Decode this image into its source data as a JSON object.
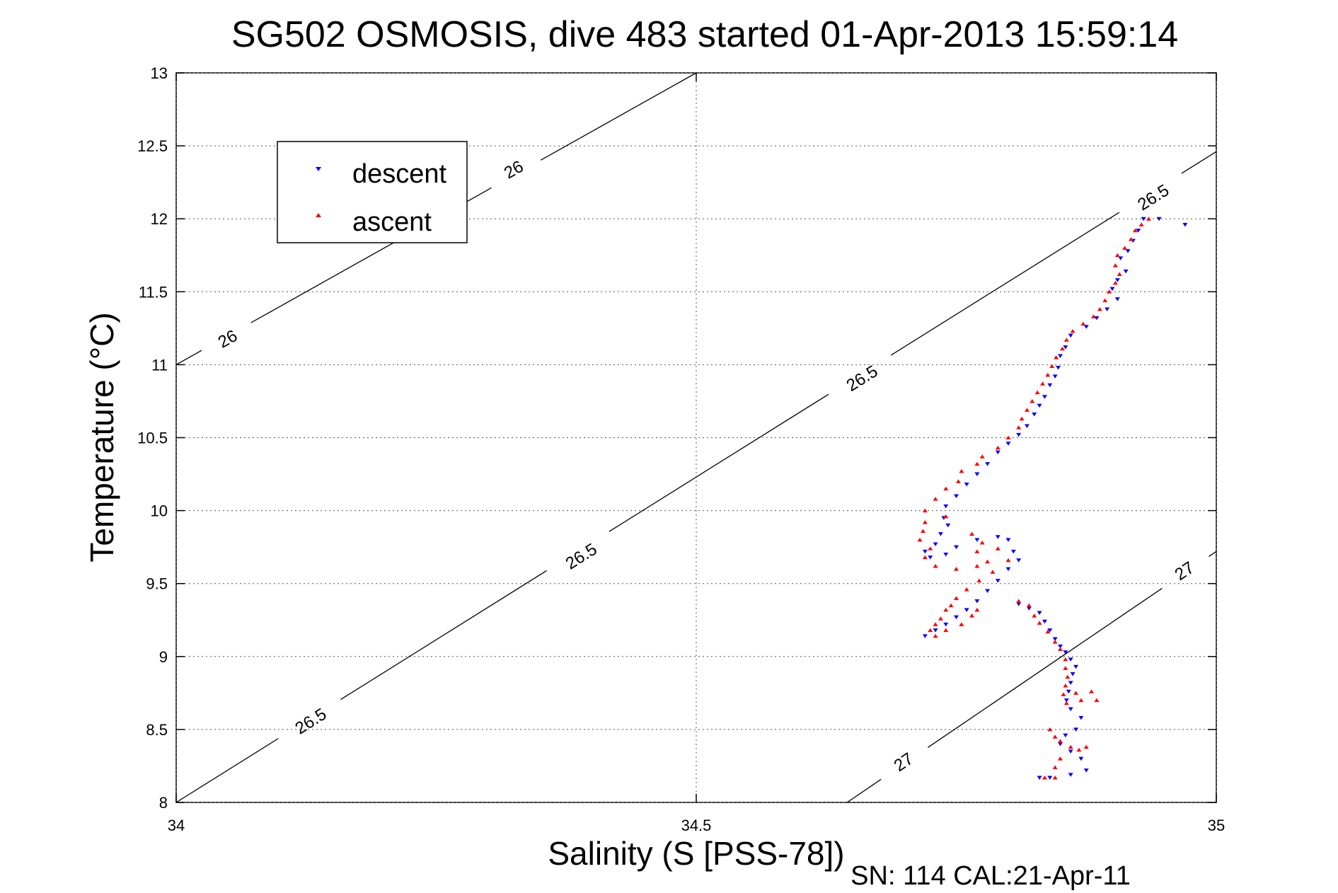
{
  "chart_data": {
    "type": "scatter",
    "title": "SG502 OSMOSIS, dive 483 started 01-Apr-2013 15:59:14",
    "xlabel": "Salinity (S [PSS-78])",
    "ylabel": "Temperature (°C)",
    "footer": "SN: 114  CAL:21-Apr-11",
    "xlim": [
      34,
      35
    ],
    "ylim": [
      8,
      13
    ],
    "x_ticks": [
      "34",
      "34.5",
      "35"
    ],
    "y_ticks": [
      "8",
      "8.5",
      "9",
      "9.5",
      "10",
      "10.5",
      "11",
      "11.5",
      "12",
      "12.5",
      "13"
    ],
    "grid": true,
    "legend_position": "top-left",
    "series": [
      {
        "name": "descent",
        "color": "#0000ff",
        "marker": "triangle-down",
        "points": [
          [
            34.93,
            12.0
          ],
          [
            34.945,
            12.0
          ],
          [
            34.97,
            11.96
          ],
          [
            34.925,
            11.92
          ],
          [
            34.92,
            11.85
          ],
          [
            34.915,
            11.78
          ],
          [
            34.908,
            11.73
          ],
          [
            34.913,
            11.64
          ],
          [
            34.905,
            11.58
          ],
          [
            34.9,
            11.52
          ],
          [
            34.905,
            11.45
          ],
          [
            34.895,
            11.38
          ],
          [
            34.885,
            11.32
          ],
          [
            34.875,
            11.26
          ],
          [
            34.86,
            11.2
          ],
          [
            34.855,
            11.12
          ],
          [
            34.85,
            11.06
          ],
          [
            34.848,
            10.98
          ],
          [
            34.845,
            10.92
          ],
          [
            34.84,
            10.86
          ],
          [
            34.835,
            10.78
          ],
          [
            34.83,
            10.72
          ],
          [
            34.825,
            10.66
          ],
          [
            34.818,
            10.58
          ],
          [
            34.81,
            10.52
          ],
          [
            34.8,
            10.46
          ],
          [
            34.79,
            10.4
          ],
          [
            34.78,
            10.32
          ],
          [
            34.77,
            10.25
          ],
          [
            34.76,
            10.18
          ],
          [
            34.75,
            10.1
          ],
          [
            34.74,
            10.03
          ],
          [
            34.738,
            9.95
          ],
          [
            34.742,
            9.9
          ],
          [
            34.735,
            9.84
          ],
          [
            34.73,
            9.77
          ],
          [
            34.72,
            9.72
          ],
          [
            34.725,
            9.68
          ],
          [
            34.74,
            9.7
          ],
          [
            34.75,
            9.75
          ],
          [
            34.77,
            9.8
          ],
          [
            34.79,
            9.82
          ],
          [
            34.8,
            9.8
          ],
          [
            34.805,
            9.72
          ],
          [
            34.81,
            9.66
          ],
          [
            34.8,
            9.6
          ],
          [
            34.79,
            9.52
          ],
          [
            34.78,
            9.45
          ],
          [
            34.77,
            9.38
          ],
          [
            34.76,
            9.32
          ],
          [
            34.75,
            9.27
          ],
          [
            34.74,
            9.22
          ],
          [
            34.73,
            9.18
          ],
          [
            34.72,
            9.14
          ],
          [
            34.81,
            9.36
          ],
          [
            34.82,
            9.33
          ],
          [
            34.83,
            9.3
          ],
          [
            34.835,
            9.24
          ],
          [
            34.84,
            9.18
          ],
          [
            34.845,
            9.12
          ],
          [
            34.85,
            9.07
          ],
          [
            34.855,
            9.03
          ],
          [
            34.86,
            8.98
          ],
          [
            34.865,
            8.93
          ],
          [
            34.862,
            8.88
          ],
          [
            34.86,
            8.82
          ],
          [
            34.858,
            8.76
          ],
          [
            34.856,
            8.7
          ],
          [
            34.86,
            8.64
          ],
          [
            34.87,
            8.58
          ],
          [
            34.865,
            8.5
          ],
          [
            34.855,
            8.46
          ],
          [
            34.85,
            8.4
          ],
          [
            34.86,
            8.35
          ],
          [
            34.87,
            8.3
          ],
          [
            34.875,
            8.22
          ],
          [
            34.86,
            8.19
          ],
          [
            34.83,
            8.17
          ],
          [
            34.84,
            8.17
          ]
        ]
      },
      {
        "name": "ascent",
        "color": "#ff0000",
        "marker": "triangle-up",
        "points": [
          [
            34.935,
            12.0
          ],
          [
            34.928,
            11.96
          ],
          [
            34.922,
            11.92
          ],
          [
            34.918,
            11.86
          ],
          [
            34.912,
            11.8
          ],
          [
            34.905,
            11.75
          ],
          [
            34.903,
            11.68
          ],
          [
            34.907,
            11.62
          ],
          [
            34.903,
            11.56
          ],
          [
            34.897,
            11.5
          ],
          [
            34.893,
            11.44
          ],
          [
            34.888,
            11.38
          ],
          [
            34.882,
            11.33
          ],
          [
            34.872,
            11.28
          ],
          [
            34.862,
            11.23
          ],
          [
            34.856,
            11.17
          ],
          [
            34.852,
            11.11
          ],
          [
            34.846,
            11.05
          ],
          [
            34.842,
            10.99
          ],
          [
            34.838,
            10.93
          ],
          [
            34.833,
            10.87
          ],
          [
            34.828,
            10.81
          ],
          [
            34.823,
            10.75
          ],
          [
            34.818,
            10.69
          ],
          [
            34.813,
            10.63
          ],
          [
            34.81,
            10.57
          ],
          [
            34.8,
            10.5
          ],
          [
            34.79,
            10.43
          ],
          [
            34.775,
            10.37
          ],
          [
            34.77,
            10.32
          ],
          [
            34.755,
            10.27
          ],
          [
            34.752,
            10.2
          ],
          [
            34.74,
            10.15
          ],
          [
            34.73,
            10.08
          ],
          [
            34.72,
            10.0
          ],
          [
            34.74,
            9.96
          ],
          [
            34.72,
            9.92
          ],
          [
            34.718,
            9.86
          ],
          [
            34.715,
            9.8
          ],
          [
            34.725,
            9.74
          ],
          [
            34.72,
            9.68
          ],
          [
            34.73,
            9.62
          ],
          [
            34.75,
            9.6
          ],
          [
            34.77,
            9.62
          ],
          [
            34.78,
            9.65
          ],
          [
            34.77,
            9.72
          ],
          [
            34.775,
            9.78
          ],
          [
            34.765,
            9.84
          ],
          [
            34.79,
            9.74
          ],
          [
            34.8,
            9.66
          ],
          [
            34.785,
            9.58
          ],
          [
            34.772,
            9.52
          ],
          [
            34.76,
            9.46
          ],
          [
            34.75,
            9.4
          ],
          [
            34.745,
            9.35
          ],
          [
            34.74,
            9.32
          ],
          [
            34.735,
            9.26
          ],
          [
            34.73,
            9.22
          ],
          [
            34.725,
            9.18
          ],
          [
            34.73,
            9.14
          ],
          [
            34.74,
            9.18
          ],
          [
            34.755,
            9.22
          ],
          [
            34.765,
            9.28
          ],
          [
            34.77,
            9.32
          ],
          [
            34.81,
            9.38
          ],
          [
            34.82,
            9.35
          ],
          [
            34.825,
            9.28
          ],
          [
            34.83,
            9.23
          ],
          [
            34.838,
            9.17
          ],
          [
            34.845,
            9.1
          ],
          [
            34.85,
            9.05
          ],
          [
            34.855,
            8.98
          ],
          [
            34.855,
            8.92
          ],
          [
            34.857,
            8.86
          ],
          [
            34.855,
            8.8
          ],
          [
            34.853,
            8.74
          ],
          [
            34.856,
            8.68
          ],
          [
            34.865,
            8.75
          ],
          [
            34.87,
            8.7
          ],
          [
            34.88,
            8.76
          ],
          [
            34.885,
            8.7
          ],
          [
            34.84,
            8.5
          ],
          [
            34.845,
            8.45
          ],
          [
            34.85,
            8.42
          ],
          [
            34.86,
            8.38
          ],
          [
            34.868,
            8.36
          ],
          [
            34.875,
            8.38
          ],
          [
            34.85,
            8.3
          ],
          [
            34.845,
            8.24
          ],
          [
            34.835,
            8.17
          ],
          [
            34.845,
            8.17
          ]
        ]
      }
    ],
    "contours": [
      {
        "label": "26",
        "points": [
          [
            34,
            11.0
          ],
          [
            34.5,
            13.0
          ]
        ],
        "label_positions": [
          [
            34.05,
            11.17
          ],
          [
            34.325,
            12.33
          ]
        ]
      },
      {
        "label": "26.5",
        "points": [
          [
            34,
            8.0
          ],
          [
            35,
            12.46
          ]
        ],
        "label_positions": [
          [
            34.13,
            8.55
          ],
          [
            34.39,
            9.68
          ],
          [
            34.66,
            10.9
          ],
          [
            34.94,
            12.14
          ]
        ]
      },
      {
        "label": "27",
        "points": [
          [
            34.645,
            8.0
          ],
          [
            35,
            9.72
          ]
        ],
        "label_positions": [
          [
            34.7,
            8.27
          ],
          [
            34.97,
            9.58
          ]
        ]
      }
    ]
  }
}
